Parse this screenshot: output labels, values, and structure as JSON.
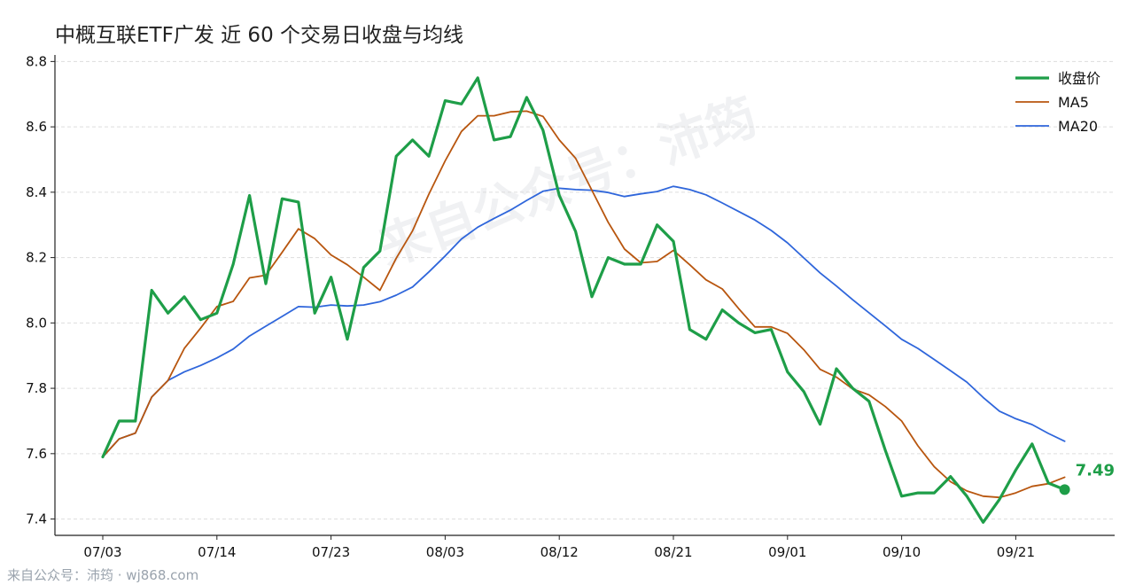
{
  "title": "中概互联ETF广发 近 60 个交易日收盘与均线",
  "footer": "来自公众号：沛筠 · wj868.com",
  "watermark": "来自公众号：沛筠",
  "colors": {
    "close": "#1e9e48",
    "ma5": "#b8560f",
    "ma20": "#2f66db",
    "grid": "#dddddd",
    "axis": "#222222"
  },
  "chart_data": {
    "type": "line",
    "title": "中概互联ETF广发 近 60 个交易日收盘与均线",
    "xlabel": "",
    "ylabel": "",
    "ylim": [
      7.35,
      8.82
    ],
    "yticks": [
      7.4,
      7.6,
      7.8,
      8.0,
      8.2,
      8.4,
      8.6,
      8.8
    ],
    "xticks": [
      {
        "index": 0,
        "label": "07/03"
      },
      {
        "index": 7,
        "label": "07/14"
      },
      {
        "index": 14,
        "label": "07/23"
      },
      {
        "index": 21,
        "label": "08/03"
      },
      {
        "index": 28,
        "label": "08/12"
      },
      {
        "index": 35,
        "label": "08/21"
      },
      {
        "index": 42,
        "label": "09/01"
      },
      {
        "index": 49,
        "label": "09/10"
      },
      {
        "index": 56,
        "label": "09/21"
      }
    ],
    "grid": "horizontal",
    "legend_position": "top-right",
    "series": [
      {
        "name": "收盘价",
        "values": [
          7.59,
          7.7,
          7.7,
          8.1,
          8.03,
          8.08,
          8.01,
          8.03,
          8.18,
          8.39,
          8.12,
          8.38,
          8.37,
          8.03,
          8.14,
          7.95,
          8.17,
          8.22,
          8.51,
          8.56,
          8.51,
          8.68,
          8.67,
          8.75,
          8.56,
          8.57,
          8.69,
          8.59,
          8.39,
          8.28,
          8.08,
          8.2,
          8.18,
          8.18,
          8.3,
          8.25,
          7.98,
          7.95,
          8.04,
          8.0,
          7.97,
          7.98,
          7.85,
          7.79,
          7.69,
          7.86,
          7.8,
          7.76,
          7.61,
          7.47,
          7.48,
          7.48,
          7.53,
          7.47,
          7.39,
          7.46,
          7.55,
          7.63,
          7.51,
          7.49
        ]
      },
      {
        "name": "MA5",
        "values": [
          7.59,
          7.645,
          7.663,
          7.773,
          7.824,
          7.922,
          7.984,
          8.05,
          8.066,
          8.138,
          8.146,
          8.216,
          8.288,
          8.258,
          8.208,
          8.178,
          8.14,
          8.1,
          8.198,
          8.282,
          8.394,
          8.496,
          8.586,
          8.634,
          8.634,
          8.646,
          8.648,
          8.632,
          8.56,
          8.504,
          8.406,
          8.308,
          8.226,
          8.184,
          8.188,
          8.222,
          8.178,
          8.132,
          8.104,
          8.044,
          7.988,
          7.988,
          7.968,
          7.918,
          7.858,
          7.834,
          7.798,
          7.78,
          7.744,
          7.7,
          7.624,
          7.56,
          7.514,
          7.486,
          7.47,
          7.466,
          7.48,
          7.5,
          7.508,
          7.528
        ]
      },
      {
        "name": "MA20",
        "values": [
          7.59,
          7.645,
          7.663,
          7.773,
          7.824,
          7.85,
          7.87,
          7.893,
          7.92,
          7.96,
          7.99,
          8.02,
          8.05,
          8.048,
          8.055,
          8.052,
          8.055,
          8.065,
          8.085,
          8.11,
          8.156,
          8.205,
          8.257,
          8.293,
          8.32,
          8.345,
          8.375,
          8.403,
          8.412,
          8.408,
          8.406,
          8.399,
          8.387,
          8.395,
          8.402,
          8.418,
          8.408,
          8.392,
          8.367,
          8.341,
          8.315,
          8.283,
          8.245,
          8.199,
          8.153,
          8.113,
          8.071,
          8.031,
          7.991,
          7.95,
          7.922,
          7.888,
          7.854,
          7.819,
          7.772,
          7.73,
          7.707,
          7.689,
          7.662,
          7.638
        ]
      }
    ],
    "end_label": {
      "series": "收盘价",
      "text": "7.49"
    }
  }
}
